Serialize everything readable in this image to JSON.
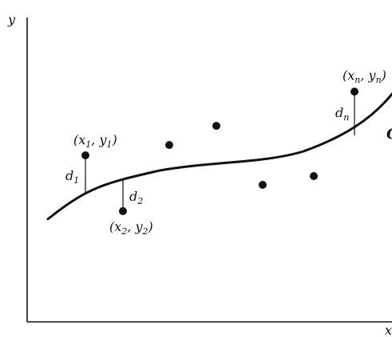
{
  "axes": {
    "y_label": "y",
    "x_label": "x"
  },
  "curve": {
    "label": "C"
  },
  "labeled_points": [
    {
      "name": "point-1",
      "label_main": "(x",
      "sub1": "1",
      "mid": ", y",
      "sub2": "1",
      "end": ")",
      "d_label": "d",
      "d_sub": "1"
    },
    {
      "name": "point-2",
      "label_main": "(x",
      "sub1": "2",
      "mid": ", y",
      "sub2": "2",
      "end": ")",
      "d_label": "d",
      "d_sub": "2"
    },
    {
      "name": "point-n",
      "label_main": "(x",
      "sub1": "n",
      "mid": ", y",
      "sub2": "n",
      "end": ")",
      "d_label": "d",
      "d_sub": "n"
    }
  ]
}
